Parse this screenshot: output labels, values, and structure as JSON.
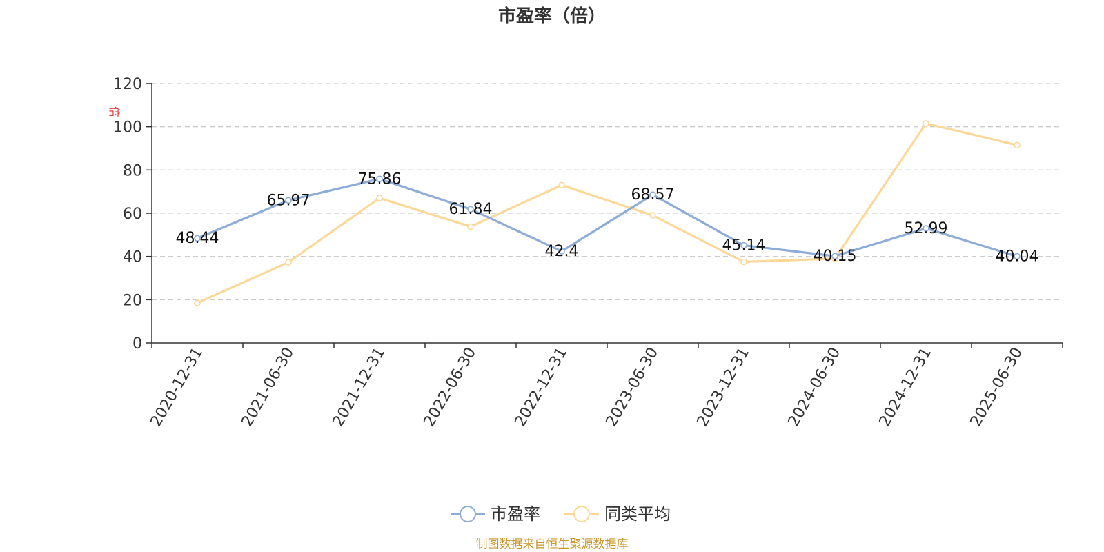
{
  "colors": {
    "series_pe": "#8eacd8",
    "series_avg": "#fcd898",
    "axis": "#333333",
    "grid": "#cccccc",
    "unit": "#e02020",
    "source": "#c8962a"
  },
  "chart_data": {
    "type": "line",
    "title": "市盈率（倍）",
    "ylabel": "倍",
    "xlabel": "",
    "ylim": [
      0,
      120
    ],
    "yticks": [
      "0",
      "20",
      "40",
      "60",
      "80",
      "100",
      "120"
    ],
    "categories": [
      "2020-12-31",
      "2021-06-30",
      "2021-12-31",
      "2022-06-30",
      "2022-12-31",
      "2023-06-30",
      "2023-12-31",
      "2024-06-30",
      "2024-12-31",
      "2025-06-30"
    ],
    "grid": true,
    "legend_position": "bottom-center",
    "series": [
      {
        "name": "市盈率",
        "values": [
          48.44,
          65.97,
          75.86,
          61.84,
          42.4,
          68.57,
          45.14,
          40.15,
          52.99,
          40.04
        ],
        "labels": [
          "48.44",
          "65.97",
          "75.86",
          "61.84",
          "42.4",
          "68.57",
          "45.14",
          "40.15",
          "52.99",
          "40.04"
        ]
      },
      {
        "name": "同类平均",
        "values": [
          18.5,
          37.3,
          67.0,
          53.8,
          73.0,
          59.0,
          37.5,
          39.0,
          101.5,
          91.5
        ]
      }
    ]
  },
  "footer": {
    "source": "制图数据来自恒生聚源数据库"
  }
}
